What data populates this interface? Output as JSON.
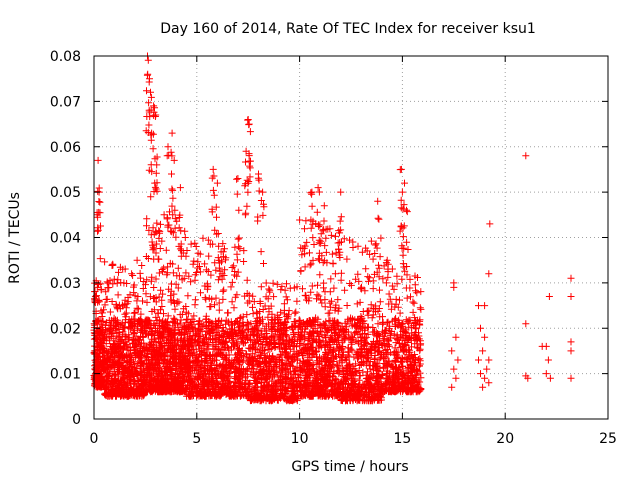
{
  "chart_data": {
    "type": "scatter",
    "title": "Day 160 of 2014, Rate Of TEC Index for receiver ksu1",
    "xlabel": "GPS time / hours",
    "ylabel": "ROTI / TECUs",
    "xlim": [
      0,
      25
    ],
    "ylim": [
      0,
      0.08
    ],
    "xticks": [
      0,
      5,
      10,
      15,
      20,
      25
    ],
    "yticks": [
      0,
      0.01,
      0.02,
      0.03,
      0.04,
      0.05,
      0.06,
      0.07,
      0.08
    ],
    "xtick_labels": [
      "0",
      "5",
      "10",
      "15",
      "20",
      "25"
    ],
    "ytick_labels": [
      "0",
      "0.01",
      "0.02",
      "0.03",
      "0.04",
      "0.05",
      "0.06",
      "0.07",
      "0.08"
    ],
    "grid": true,
    "marker": "+",
    "marker_color": "#ff0000",
    "dense_segments": [
      {
        "x_start": 0.0,
        "x_end": 0.5,
        "y_min": 0.007,
        "y_max": 0.03,
        "count": 260
      },
      {
        "x_start": 0.5,
        "x_end": 2.5,
        "y_min": 0.005,
        "y_max": 0.035,
        "count": 700
      },
      {
        "x_start": 2.5,
        "x_end": 4.5,
        "y_min": 0.006,
        "y_max": 0.045,
        "count": 800
      },
      {
        "x_start": 4.5,
        "x_end": 7.5,
        "y_min": 0.005,
        "y_max": 0.04,
        "count": 900
      },
      {
        "x_start": 7.5,
        "x_end": 10.0,
        "y_min": 0.004,
        "y_max": 0.03,
        "count": 700
      },
      {
        "x_start": 10.0,
        "x_end": 12.0,
        "y_min": 0.005,
        "y_max": 0.045,
        "count": 650
      },
      {
        "x_start": 12.0,
        "x_end": 14.0,
        "y_min": 0.004,
        "y_max": 0.04,
        "count": 550
      },
      {
        "x_start": 14.0,
        "x_end": 15.9,
        "y_min": 0.006,
        "y_max": 0.035,
        "count": 500
      }
    ],
    "peaks": [
      {
        "x": 0.2,
        "y": 0.057
      },
      {
        "x": 0.25,
        "y": 0.05
      },
      {
        "x": 0.15,
        "y": 0.045
      },
      {
        "x": 2.6,
        "y": 0.08
      },
      {
        "x": 2.7,
        "y": 0.075
      },
      {
        "x": 2.75,
        "y": 0.072
      },
      {
        "x": 2.9,
        "y": 0.069
      },
      {
        "x": 3.0,
        "y": 0.067
      },
      {
        "x": 2.8,
        "y": 0.063
      },
      {
        "x": 3.05,
        "y": 0.056
      },
      {
        "x": 2.95,
        "y": 0.052
      },
      {
        "x": 3.6,
        "y": 0.06
      },
      {
        "x": 3.8,
        "y": 0.063
      },
      {
        "x": 3.9,
        "y": 0.057
      },
      {
        "x": 4.2,
        "y": 0.051
      },
      {
        "x": 5.8,
        "y": 0.055
      },
      {
        "x": 6.0,
        "y": 0.052
      },
      {
        "x": 7.0,
        "y": 0.053
      },
      {
        "x": 7.5,
        "y": 0.066
      },
      {
        "x": 7.55,
        "y": 0.065
      },
      {
        "x": 7.4,
        "y": 0.059
      },
      {
        "x": 8.0,
        "y": 0.054
      },
      {
        "x": 8.2,
        "y": 0.05
      },
      {
        "x": 10.6,
        "y": 0.05
      },
      {
        "x": 10.9,
        "y": 0.051
      },
      {
        "x": 11.2,
        "y": 0.047
      },
      {
        "x": 12.0,
        "y": 0.05
      },
      {
        "x": 13.8,
        "y": 0.048
      },
      {
        "x": 14.95,
        "y": 0.055
      },
      {
        "x": 15.0,
        "y": 0.05
      },
      {
        "x": 15.1,
        "y": 0.052
      },
      {
        "x": 15.2,
        "y": 0.046
      }
    ],
    "sparse_points": [
      {
        "x": 17.5,
        "y": 0.03
      },
      {
        "x": 17.5,
        "y": 0.029
      },
      {
        "x": 17.6,
        "y": 0.018
      },
      {
        "x": 17.4,
        "y": 0.015
      },
      {
        "x": 17.7,
        "y": 0.013
      },
      {
        "x": 17.5,
        "y": 0.011
      },
      {
        "x": 17.6,
        "y": 0.009
      },
      {
        "x": 17.4,
        "y": 0.007
      },
      {
        "x": 18.7,
        "y": 0.025
      },
      {
        "x": 19.0,
        "y": 0.025
      },
      {
        "x": 18.8,
        "y": 0.02
      },
      {
        "x": 19.0,
        "y": 0.018
      },
      {
        "x": 18.9,
        "y": 0.015
      },
      {
        "x": 18.7,
        "y": 0.013
      },
      {
        "x": 19.2,
        "y": 0.013
      },
      {
        "x": 19.1,
        "y": 0.011
      },
      {
        "x": 18.8,
        "y": 0.01
      },
      {
        "x": 19.0,
        "y": 0.009
      },
      {
        "x": 19.2,
        "y": 0.008
      },
      {
        "x": 18.9,
        "y": 0.007
      },
      {
        "x": 19.25,
        "y": 0.043
      },
      {
        "x": 19.2,
        "y": 0.032
      },
      {
        "x": 21.0,
        "y": 0.058
      },
      {
        "x": 21.0,
        "y": 0.021
      },
      {
        "x": 21.0,
        "y": 0.0095
      },
      {
        "x": 21.1,
        "y": 0.009
      },
      {
        "x": 21.8,
        "y": 0.016
      },
      {
        "x": 22.0,
        "y": 0.016
      },
      {
        "x": 22.1,
        "y": 0.013
      },
      {
        "x": 22.0,
        "y": 0.01
      },
      {
        "x": 22.2,
        "y": 0.009
      },
      {
        "x": 22.15,
        "y": 0.027
      },
      {
        "x": 23.2,
        "y": 0.031
      },
      {
        "x": 23.2,
        "y": 0.027
      },
      {
        "x": 23.2,
        "y": 0.017
      },
      {
        "x": 23.2,
        "y": 0.015
      },
      {
        "x": 23.2,
        "y": 0.009
      }
    ]
  }
}
